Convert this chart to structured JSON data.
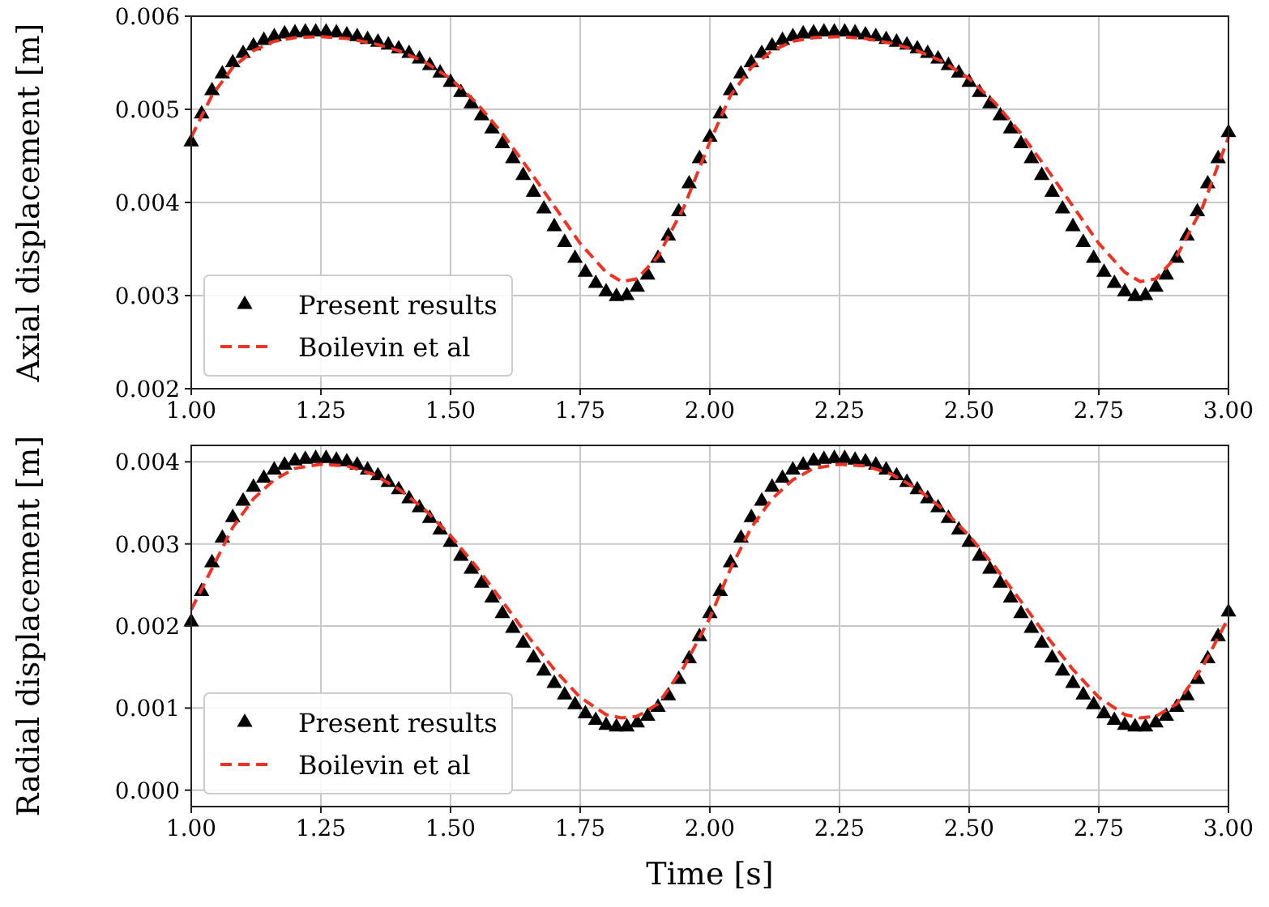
{
  "chart_data": [
    {
      "type": "line",
      "ylabel": "Axial displacement [m]",
      "xlim": [
        1.0,
        3.0
      ],
      "xticks": [
        {
          "value": 1,
          "label": "1.00"
        },
        {
          "value": 1.25,
          "label": "1.25"
        },
        {
          "value": 1.5,
          "label": "1.50"
        },
        {
          "value": 1.75,
          "label": "1.75"
        },
        {
          "value": 2,
          "label": "2.00"
        },
        {
          "value": 2.25,
          "label": "2.25"
        },
        {
          "value": 2.5,
          "label": "2.50"
        },
        {
          "value": 2.75,
          "label": "2.75"
        },
        {
          "value": 3,
          "label": "3.00"
        }
      ],
      "ylim": [
        0.002,
        0.006
      ],
      "yticks": [
        {
          "value": 0.002,
          "label": "0.002"
        },
        {
          "value": 0.003,
          "label": "0.003"
        },
        {
          "value": 0.004,
          "label": "0.004"
        },
        {
          "value": 0.005,
          "label": "0.005"
        },
        {
          "value": 0.006,
          "label": "0.006"
        }
      ],
      "grid": true,
      "legend": "bottom left",
      "series": [
        {
          "name": "Present results",
          "type": "scatter",
          "marker": "triangle",
          "color": "#000000",
          "x": [
            1.0,
            1.02,
            1.04,
            1.06,
            1.08,
            1.1,
            1.12,
            1.14,
            1.16,
            1.18,
            1.2,
            1.22,
            1.24,
            1.26,
            1.28,
            1.3,
            1.32,
            1.34,
            1.36,
            1.38,
            1.4,
            1.42,
            1.44,
            1.46,
            1.48,
            1.5,
            1.52,
            1.54,
            1.56,
            1.58,
            1.6,
            1.62,
            1.64,
            1.66,
            1.68,
            1.7,
            1.72,
            1.74,
            1.76,
            1.78,
            1.8,
            1.82,
            1.84,
            1.86,
            1.88,
            1.9,
            1.92,
            1.94,
            1.96,
            1.98,
            2.0,
            2.02,
            2.04,
            2.06,
            2.08,
            2.1,
            2.12,
            2.14,
            2.16,
            2.18,
            2.2,
            2.22,
            2.24,
            2.26,
            2.28,
            2.3,
            2.32,
            2.34,
            2.36,
            2.38,
            2.4,
            2.42,
            2.44,
            2.46,
            2.48,
            2.5,
            2.52,
            2.54,
            2.56,
            2.58,
            2.6,
            2.62,
            2.64,
            2.66,
            2.68,
            2.7,
            2.72,
            2.74,
            2.76,
            2.78,
            2.8,
            2.82,
            2.84,
            2.86,
            2.88,
            2.9,
            2.92,
            2.94,
            2.96,
            2.98,
            3.0
          ],
          "values": [
            0.00465,
            0.00495,
            0.0052,
            0.00538,
            0.0055,
            0.0056,
            0.00568,
            0.00574,
            0.00578,
            0.00581,
            0.00582,
            0.00583,
            0.00583,
            0.00583,
            0.00582,
            0.0058,
            0.00578,
            0.00575,
            0.00572,
            0.00569,
            0.00565,
            0.0056,
            0.00554,
            0.00547,
            0.00539,
            0.00529,
            0.00518,
            0.00506,
            0.00493,
            0.00479,
            0.00463,
            0.00447,
            0.00429,
            0.00411,
            0.00393,
            0.00374,
            0.00357,
            0.0034,
            0.00325,
            0.00313,
            0.00304,
            0.00299,
            0.003,
            0.00309,
            0.00322,
            0.0034,
            0.00364,
            0.0039,
            0.0042,
            0.00447,
            0.0047,
            0.00495,
            0.0052,
            0.00538,
            0.0055,
            0.0056,
            0.00568,
            0.00574,
            0.00578,
            0.00581,
            0.00582,
            0.00583,
            0.00583,
            0.00583,
            0.00582,
            0.0058,
            0.00578,
            0.00575,
            0.00572,
            0.00569,
            0.00565,
            0.0056,
            0.00554,
            0.00547,
            0.00539,
            0.00529,
            0.00518,
            0.00506,
            0.00493,
            0.00479,
            0.00463,
            0.00447,
            0.00429,
            0.00411,
            0.00393,
            0.00374,
            0.00357,
            0.0034,
            0.00325,
            0.00313,
            0.00304,
            0.00299,
            0.003,
            0.00309,
            0.00322,
            0.0034,
            0.00364,
            0.0039,
            0.0042,
            0.00447,
            0.00475
          ]
        },
        {
          "name": "Boilevin et al",
          "line_style": "dashed",
          "color": "#ee3322",
          "x": [
            1.0,
            1.04,
            1.08,
            1.12,
            1.16,
            1.2,
            1.25,
            1.3,
            1.35,
            1.4,
            1.45,
            1.5,
            1.55,
            1.6,
            1.65,
            1.7,
            1.75,
            1.8,
            1.83,
            1.86,
            1.9,
            1.95,
            2.0,
            2.04,
            2.08,
            2.12,
            2.16,
            2.2,
            2.25,
            2.3,
            2.35,
            2.4,
            2.45,
            2.5,
            2.55,
            2.6,
            2.65,
            2.7,
            2.75,
            2.8,
            2.83,
            2.86,
            2.9,
            2.95,
            3.0
          ],
          "values": [
            0.0047,
            0.00515,
            0.00545,
            0.00563,
            0.00573,
            0.00577,
            0.00578,
            0.00576,
            0.00571,
            0.00563,
            0.00551,
            0.00533,
            0.00507,
            0.00474,
            0.00436,
            0.00396,
            0.00356,
            0.00325,
            0.00315,
            0.00318,
            0.00342,
            0.00395,
            0.00465,
            0.00515,
            0.00545,
            0.00563,
            0.00573,
            0.00577,
            0.00578,
            0.00576,
            0.00571,
            0.00563,
            0.00551,
            0.00533,
            0.00507,
            0.00474,
            0.00436,
            0.00396,
            0.00356,
            0.00325,
            0.00315,
            0.00318,
            0.00342,
            0.00395,
            0.0047
          ]
        }
      ]
    },
    {
      "type": "line",
      "xlabel": "Time [s]",
      "ylabel": "Radial displacement [m]",
      "xlim": [
        1.0,
        3.0
      ],
      "xticks": [
        {
          "value": 1,
          "label": "1.00"
        },
        {
          "value": 1.25,
          "label": "1.25"
        },
        {
          "value": 1.5,
          "label": "1.50"
        },
        {
          "value": 1.75,
          "label": "1.75"
        },
        {
          "value": 2,
          "label": "2.00"
        },
        {
          "value": 2.25,
          "label": "2.25"
        },
        {
          "value": 2.5,
          "label": "2.50"
        },
        {
          "value": 2.75,
          "label": "2.75"
        },
        {
          "value": 3,
          "label": "3.00"
        }
      ],
      "ylim": [
        -0.0002,
        0.0042
      ],
      "yticks": [
        {
          "value": 0,
          "label": "0.000"
        },
        {
          "value": 0.001,
          "label": "0.001"
        },
        {
          "value": 0.002,
          "label": "0.002"
        },
        {
          "value": 0.003,
          "label": "0.003"
        },
        {
          "value": 0.004,
          "label": "0.004"
        }
      ],
      "grid": true,
      "legend": "bottom left",
      "series": [
        {
          "name": "Present results",
          "type": "scatter",
          "marker": "triangle",
          "color": "#000000",
          "x": [
            1.0,
            1.02,
            1.04,
            1.06,
            1.08,
            1.1,
            1.12,
            1.14,
            1.16,
            1.18,
            1.2,
            1.22,
            1.24,
            1.26,
            1.28,
            1.3,
            1.32,
            1.34,
            1.36,
            1.38,
            1.4,
            1.42,
            1.44,
            1.46,
            1.48,
            1.5,
            1.52,
            1.54,
            1.56,
            1.58,
            1.6,
            1.62,
            1.64,
            1.66,
            1.68,
            1.7,
            1.72,
            1.74,
            1.76,
            1.78,
            1.8,
            1.82,
            1.84,
            1.86,
            1.88,
            1.9,
            1.92,
            1.94,
            1.96,
            1.98,
            2.0,
            2.02,
            2.04,
            2.06,
            2.08,
            2.1,
            2.12,
            2.14,
            2.16,
            2.18,
            2.2,
            2.22,
            2.24,
            2.26,
            2.28,
            2.3,
            2.32,
            2.34,
            2.36,
            2.38,
            2.4,
            2.42,
            2.44,
            2.46,
            2.48,
            2.5,
            2.52,
            2.54,
            2.56,
            2.58,
            2.6,
            2.62,
            2.64,
            2.66,
            2.68,
            2.7,
            2.72,
            2.74,
            2.76,
            2.78,
            2.8,
            2.82,
            2.84,
            2.86,
            2.88,
            2.9,
            2.92,
            2.94,
            2.96,
            2.98,
            3.0
          ],
          "values": [
            0.00205,
            0.00242,
            0.00277,
            0.00307,
            0.00332,
            0.00352,
            0.00369,
            0.0038,
            0.0039,
            0.00396,
            0.00401,
            0.00403,
            0.00404,
            0.00404,
            0.00402,
            0.004,
            0.00396,
            0.0039,
            0.00383,
            0.00375,
            0.00366,
            0.00355,
            0.00344,
            0.00331,
            0.00317,
            0.00302,
            0.00285,
            0.00269,
            0.00252,
            0.00234,
            0.00215,
            0.00197,
            0.00179,
            0.00161,
            0.00145,
            0.0013,
            0.00116,
            0.00104,
            0.00093,
            0.00085,
            0.00079,
            0.00077,
            0.00077,
            0.00082,
            0.0009,
            0.00101,
            0.00115,
            0.00135,
            0.0016,
            0.00187,
            0.00215,
            0.00242,
            0.00277,
            0.00307,
            0.00332,
            0.00352,
            0.00369,
            0.0038,
            0.0039,
            0.00396,
            0.00401,
            0.00403,
            0.00404,
            0.00404,
            0.00402,
            0.004,
            0.00396,
            0.0039,
            0.00383,
            0.00375,
            0.00366,
            0.00355,
            0.00344,
            0.00331,
            0.00317,
            0.00302,
            0.00285,
            0.00269,
            0.00252,
            0.00234,
            0.00215,
            0.00197,
            0.00179,
            0.00161,
            0.00145,
            0.0013,
            0.00116,
            0.00104,
            0.00093,
            0.00085,
            0.00079,
            0.00077,
            0.00077,
            0.00082,
            0.0009,
            0.00101,
            0.00115,
            0.00135,
            0.0016,
            0.00187,
            0.00217
          ]
        },
        {
          "name": "Boilevin et al",
          "line_style": "dashed",
          "color": "#ee3322",
          "x": [
            1.0,
            1.04,
            1.08,
            1.12,
            1.16,
            1.2,
            1.25,
            1.3,
            1.35,
            1.4,
            1.45,
            1.5,
            1.55,
            1.6,
            1.65,
            1.7,
            1.75,
            1.8,
            1.83,
            1.86,
            1.9,
            1.95,
            2.0,
            2.04,
            2.08,
            2.12,
            2.16,
            2.2,
            2.25,
            2.3,
            2.35,
            2.4,
            2.45,
            2.5,
            2.55,
            2.6,
            2.65,
            2.7,
            2.75,
            2.8,
            2.83,
            2.86,
            2.9,
            2.95,
            3.0
          ],
          "values": [
            0.0022,
            0.0027,
            0.0032,
            0.00355,
            0.00378,
            0.00392,
            0.00397,
            0.00395,
            0.00385,
            0.00367,
            0.00342,
            0.0031,
            0.00272,
            0.0023,
            0.00187,
            0.00147,
            0.00113,
            0.00092,
            0.00088,
            0.0009,
            0.00105,
            0.0015,
            0.0021,
            0.0027,
            0.0032,
            0.00355,
            0.00378,
            0.00392,
            0.00397,
            0.00395,
            0.00385,
            0.00367,
            0.00342,
            0.0031,
            0.00272,
            0.0023,
            0.00187,
            0.00147,
            0.00113,
            0.00092,
            0.00088,
            0.0009,
            0.00105,
            0.0015,
            0.0021
          ]
        }
      ]
    }
  ]
}
